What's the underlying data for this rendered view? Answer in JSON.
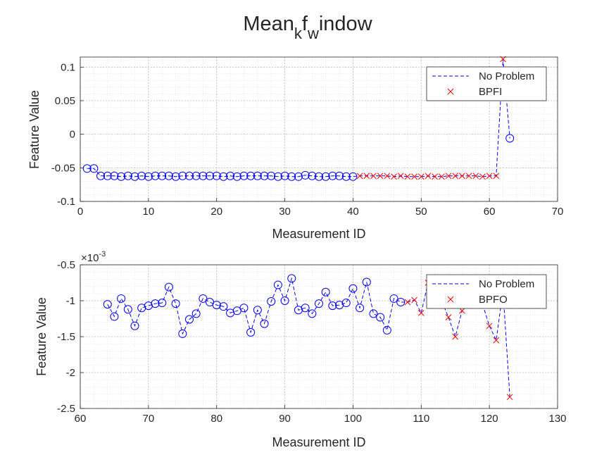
{
  "figure": {
    "title_main": "Mean",
    "title_sub1": "k",
    "title_mid": "f",
    "title_sub2": "w",
    "title_end": "indow"
  },
  "chart_data": [
    {
      "type": "line",
      "xlabel": "Measurement ID",
      "ylabel": "Feature Value",
      "xlim": [
        0,
        70
      ],
      "ylim": [
        -0.1,
        0.115
      ],
      "xticks": [
        0,
        10,
        20,
        30,
        40,
        50,
        60,
        70
      ],
      "yticks": [
        -0.1,
        -0.05,
        0,
        0.05,
        0.1
      ],
      "xtick_labels": [
        "0",
        "10",
        "20",
        "30",
        "40",
        "50",
        "60",
        "70"
      ],
      "ytick_labels": [
        "-0.1",
        "-0.05",
        "0",
        "0.05",
        "0.1"
      ],
      "grid": true,
      "minor_grid": true,
      "legend_position": "top-right",
      "legend": [
        "No Problem",
        "BPFI"
      ],
      "series": [
        {
          "name": "No Problem",
          "style": "dashed-line-circle-markers",
          "color": "#0000ff",
          "x": [
            1,
            2,
            3,
            4,
            5,
            6,
            7,
            8,
            9,
            10,
            11,
            12,
            13,
            14,
            15,
            16,
            17,
            18,
            19,
            20,
            21,
            22,
            23,
            24,
            25,
            26,
            27,
            28,
            29,
            30,
            31,
            32,
            33,
            34,
            35,
            36,
            37,
            38,
            39,
            40,
            41,
            42,
            43,
            44,
            45,
            46,
            47,
            48,
            49,
            50,
            51,
            52,
            53,
            54,
            55,
            56,
            57,
            58,
            59,
            60,
            61,
            62,
            63
          ],
          "y": [
            -0.051,
            -0.051,
            -0.062,
            -0.062,
            -0.062,
            -0.063,
            -0.062,
            -0.063,
            -0.062,
            -0.063,
            -0.062,
            -0.062,
            -0.062,
            -0.063,
            -0.062,
            -0.062,
            -0.062,
            -0.062,
            -0.062,
            -0.062,
            -0.063,
            -0.062,
            -0.063,
            -0.062,
            -0.062,
            -0.062,
            -0.062,
            -0.062,
            -0.063,
            -0.062,
            -0.063,
            -0.063,
            -0.061,
            -0.062,
            -0.063,
            -0.063,
            -0.062,
            -0.062,
            -0.063,
            -0.063,
            -0.062,
            -0.062,
            -0.062,
            -0.062,
            -0.062,
            -0.063,
            -0.062,
            -0.063,
            -0.063,
            -0.063,
            -0.062,
            -0.063,
            -0.063,
            -0.062,
            -0.062,
            -0.062,
            -0.062,
            -0.062,
            -0.063,
            -0.062,
            -0.062,
            0.112,
            -0.006
          ],
          "markers_x": [
            1,
            2,
            3,
            4,
            5,
            6,
            7,
            8,
            9,
            10,
            11,
            12,
            13,
            14,
            15,
            16,
            17,
            18,
            19,
            20,
            21,
            22,
            23,
            24,
            25,
            26,
            27,
            28,
            29,
            30,
            31,
            32,
            33,
            34,
            35,
            36,
            37,
            38,
            39,
            40,
            63
          ],
          "markers_y": [
            -0.051,
            -0.051,
            -0.062,
            -0.062,
            -0.062,
            -0.063,
            -0.062,
            -0.063,
            -0.062,
            -0.063,
            -0.062,
            -0.062,
            -0.062,
            -0.063,
            -0.062,
            -0.062,
            -0.062,
            -0.062,
            -0.062,
            -0.062,
            -0.063,
            -0.062,
            -0.063,
            -0.062,
            -0.062,
            -0.062,
            -0.062,
            -0.062,
            -0.063,
            -0.062,
            -0.063,
            -0.063,
            -0.061,
            -0.062,
            -0.063,
            -0.063,
            -0.062,
            -0.062,
            -0.063,
            -0.063,
            -0.006
          ]
        },
        {
          "name": "BPFI",
          "style": "x-markers",
          "color": "#ff0000",
          "x": [
            41,
            42,
            43,
            44,
            45,
            46,
            47,
            48,
            49,
            50,
            51,
            52,
            53,
            54,
            55,
            56,
            57,
            58,
            59,
            60,
            61,
            62
          ],
          "y": [
            -0.062,
            -0.062,
            -0.062,
            -0.062,
            -0.062,
            -0.063,
            -0.062,
            -0.063,
            -0.063,
            -0.063,
            -0.062,
            -0.063,
            -0.063,
            -0.062,
            -0.062,
            -0.062,
            -0.062,
            -0.062,
            -0.063,
            -0.062,
            -0.062,
            0.112
          ]
        }
      ]
    },
    {
      "type": "line",
      "xlabel": "Measurement ID",
      "ylabel": "Feature Value",
      "exponent_label": "×10",
      "exponent_power": "-3",
      "xlim": [
        60,
        130
      ],
      "ylim": [
        -2.5,
        -0.5
      ],
      "xticks": [
        60,
        70,
        80,
        90,
        100,
        110,
        120,
        130
      ],
      "yticks": [
        -2.5,
        -2,
        -1.5,
        -1,
        -0.5
      ],
      "xtick_labels": [
        "60",
        "70",
        "80",
        "90",
        "100",
        "110",
        "120",
        "130"
      ],
      "ytick_labels": [
        "-2.5",
        "-2",
        "-1.5",
        "-1",
        "-0.5"
      ],
      "grid": true,
      "minor_grid": true,
      "legend_position": "top-right",
      "legend": [
        "No Problem",
        "BPFO"
      ],
      "series": [
        {
          "name": "No Problem",
          "style": "dashed-line-circle-markers",
          "color": "#0000ff",
          "x": [
            64,
            65,
            66,
            67,
            68,
            69,
            70,
            71,
            72,
            73,
            74,
            75,
            76,
            77,
            78,
            79,
            80,
            81,
            82,
            83,
            84,
            85,
            86,
            87,
            88,
            89,
            90,
            91,
            92,
            93,
            94,
            95,
            96,
            97,
            98,
            99,
            100,
            101,
            102,
            103,
            104,
            105,
            106,
            107,
            108,
            109,
            110,
            111,
            112,
            113,
            114,
            115,
            116,
            117,
            118,
            119,
            120,
            121,
            122,
            123
          ],
          "y": [
            -1.05,
            -1.22,
            -0.97,
            -1.12,
            -1.35,
            -1.1,
            -1.07,
            -1.04,
            -1.03,
            -0.81,
            -1.04,
            -1.46,
            -1.26,
            -1.18,
            -0.97,
            -1.02,
            -1.06,
            -1.08,
            -1.17,
            -1.14,
            -1.1,
            -1.44,
            -1.13,
            -1.32,
            -1.01,
            -0.78,
            -1.0,
            -0.69,
            -1.13,
            -1.1,
            -1.18,
            -1.04,
            -0.88,
            -1.07,
            -1.06,
            -1.03,
            -0.83,
            -1.1,
            -0.74,
            -1.18,
            -1.23,
            -1.41,
            -0.97,
            -1.02,
            -1.02,
            -0.99,
            -1.17,
            -0.75,
            -1.05,
            -1.0,
            -1.23,
            -1.5,
            -1.14,
            -1.04,
            -0.99,
            -1.05,
            -1.35,
            -1.55,
            -0.86,
            -2.34
          ],
          "markers_x": [
            64,
            65,
            66,
            67,
            68,
            69,
            70,
            71,
            72,
            73,
            74,
            75,
            76,
            77,
            78,
            79,
            80,
            81,
            82,
            83,
            84,
            85,
            86,
            87,
            88,
            89,
            90,
            91,
            92,
            93,
            94,
            95,
            96,
            97,
            98,
            99,
            100,
            101,
            102,
            103,
            104,
            105,
            106,
            107
          ],
          "markers_y": [
            -1.05,
            -1.22,
            -0.97,
            -1.12,
            -1.35,
            -1.1,
            -1.07,
            -1.04,
            -1.03,
            -0.81,
            -1.04,
            -1.46,
            -1.26,
            -1.18,
            -0.97,
            -1.02,
            -1.06,
            -1.08,
            -1.17,
            -1.14,
            -1.1,
            -1.44,
            -1.13,
            -1.32,
            -1.01,
            -0.78,
            -1.0,
            -0.69,
            -1.13,
            -1.1,
            -1.18,
            -1.04,
            -0.88,
            -1.07,
            -1.06,
            -1.03,
            -0.83,
            -1.1,
            -0.74,
            -1.18,
            -1.23,
            -1.41,
            -0.97,
            -1.02
          ]
        },
        {
          "name": "BPFO",
          "style": "x-markers",
          "color": "#ff0000",
          "x": [
            108,
            109,
            110,
            111,
            112,
            113,
            114,
            115,
            116,
            117,
            118,
            119,
            120,
            121,
            122,
            123
          ],
          "y": [
            -1.02,
            -0.99,
            -1.17,
            -0.75,
            -1.05,
            -1.0,
            -1.23,
            -1.5,
            -1.14,
            -1.04,
            -0.99,
            -1.05,
            -1.35,
            -1.55,
            -0.86,
            -2.34
          ]
        }
      ]
    }
  ]
}
